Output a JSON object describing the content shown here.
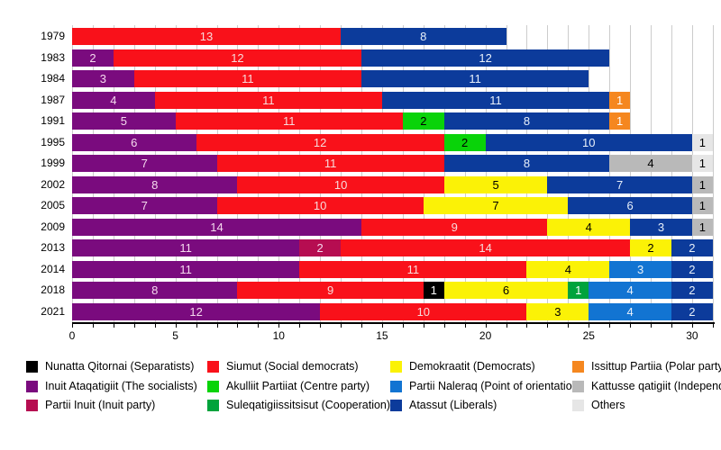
{
  "chart_data": {
    "type": "bar",
    "variant": "horizontal-stacked",
    "title": "",
    "xlabel": "",
    "ylabel": "",
    "xlim": [
      0,
      31
    ],
    "x_major_ticks": [
      0,
      5,
      10,
      15,
      20,
      25,
      30
    ],
    "x_minor_tick_step": 1,
    "grid": "vertical, every 1 unit, light gray",
    "legend_position": "bottom, 4 columns",
    "unit": "seats",
    "parties": {
      "nq": {
        "label": "Nunatta Qitornai (Separatists)",
        "color": "#000000",
        "text_color": "#ffffff"
      },
      "ia": {
        "label": "Inuit Ataqatigiit (The socialists)",
        "color": "#7A0B7E",
        "text_color": "#f5d9ee"
      },
      "pi": {
        "label": "Partii Inuit (Inuit party)",
        "color": "#B60D51",
        "text_color": "#f5d9ee"
      },
      "si": {
        "label": "Siumut (Social democrats)",
        "color": "#F9111A",
        "text_color": "#f7dbdb"
      },
      "ap": {
        "label": "Akulliit Partiiat (Centre party)",
        "color": "#09D309",
        "text_color": "#000000"
      },
      "su": {
        "label": "Suleqatigiissitsisut (Cooperation)",
        "color": "#00A33C",
        "text_color": "#ffffff"
      },
      "de": {
        "label": "Demokraatit (Democrats)",
        "color": "#FBF206",
        "text_color": "#000000"
      },
      "pn": {
        "label": "Partii Naleraq (Point of orientation)",
        "color": "#1274D2",
        "text_color": "#e8f0fa"
      },
      "at": {
        "label": "Atassut (Liberals)",
        "color": "#0C3B9B",
        "text_color": "#e8f0fa"
      },
      "ip": {
        "label": "Issittup Partiia (Polar party)",
        "color": "#F5871F",
        "text_color": "#ffffff"
      },
      "ka": {
        "label": "Kattusse qatigiit (Independents)",
        "color": "#B9B9B9",
        "text_color": "#000000"
      },
      "ot": {
        "label": "Others",
        "color": "#E6E6E6",
        "text_color": "#000000"
      }
    },
    "legend_columns": [
      [
        "nq",
        "ia",
        "pi"
      ],
      [
        "si",
        "ap",
        "su"
      ],
      [
        "de",
        "pn",
        "at"
      ],
      [
        "ip",
        "ka",
        "ot"
      ]
    ],
    "rows": [
      {
        "year": "1979",
        "segments": [
          [
            "si",
            13
          ],
          [
            "at",
            8
          ]
        ]
      },
      {
        "year": "1983",
        "segments": [
          [
            "ia",
            2
          ],
          [
            "si",
            12
          ],
          [
            "at",
            12
          ]
        ]
      },
      {
        "year": "1984",
        "segments": [
          [
            "ia",
            3
          ],
          [
            "si",
            11
          ],
          [
            "at",
            11
          ]
        ]
      },
      {
        "year": "1987",
        "segments": [
          [
            "ia",
            4
          ],
          [
            "si",
            11
          ],
          [
            "at",
            11
          ],
          [
            "ip",
            1
          ]
        ]
      },
      {
        "year": "1991",
        "segments": [
          [
            "ia",
            5
          ],
          [
            "si",
            11
          ],
          [
            "ap",
            2
          ],
          [
            "at",
            8
          ],
          [
            "ip",
            1
          ]
        ]
      },
      {
        "year": "1995",
        "segments": [
          [
            "ia",
            6
          ],
          [
            "si",
            12
          ],
          [
            "ap",
            2
          ],
          [
            "at",
            10
          ],
          [
            "ot",
            1
          ]
        ]
      },
      {
        "year": "1999",
        "segments": [
          [
            "ia",
            7
          ],
          [
            "si",
            11
          ],
          [
            "at",
            8
          ],
          [
            "ka",
            4
          ],
          [
            "ot",
            1
          ]
        ]
      },
      {
        "year": "2002",
        "segments": [
          [
            "ia",
            8
          ],
          [
            "si",
            10
          ],
          [
            "de",
            5
          ],
          [
            "at",
            7
          ],
          [
            "ka",
            1
          ]
        ]
      },
      {
        "year": "2005",
        "segments": [
          [
            "ia",
            7
          ],
          [
            "si",
            10
          ],
          [
            "de",
            7
          ],
          [
            "at",
            6
          ],
          [
            "ka",
            1
          ]
        ]
      },
      {
        "year": "2009",
        "segments": [
          [
            "ia",
            14
          ],
          [
            "si",
            9
          ],
          [
            "de",
            4
          ],
          [
            "at",
            3
          ],
          [
            "ka",
            1
          ]
        ]
      },
      {
        "year": "2013",
        "segments": [
          [
            "ia",
            11
          ],
          [
            "pi",
            2
          ],
          [
            "si",
            14
          ],
          [
            "de",
            2
          ],
          [
            "at",
            2
          ]
        ]
      },
      {
        "year": "2014",
        "segments": [
          [
            "ia",
            11
          ],
          [
            "si",
            11
          ],
          [
            "de",
            4
          ],
          [
            "pn",
            3
          ],
          [
            "at",
            2
          ]
        ]
      },
      {
        "year": "2018",
        "segments": [
          [
            "ia",
            8
          ],
          [
            "si",
            9
          ],
          [
            "nq",
            1
          ],
          [
            "de",
            6
          ],
          [
            "su",
            1
          ],
          [
            "pn",
            4
          ],
          [
            "at",
            2
          ]
        ]
      },
      {
        "year": "2021",
        "segments": [
          [
            "ia",
            12
          ],
          [
            "si",
            10
          ],
          [
            "de",
            3
          ],
          [
            "pn",
            4
          ],
          [
            "at",
            2
          ]
        ]
      }
    ]
  }
}
